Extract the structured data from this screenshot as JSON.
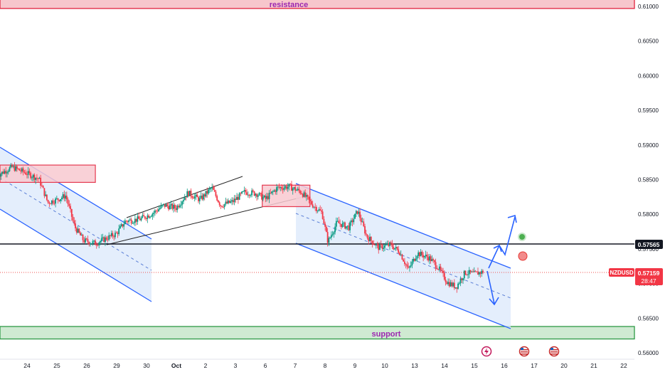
{
  "chart_data": {
    "type": "candlestick",
    "symbol": "NZDUSD",
    "last_price": "0.57159",
    "countdown": "28:47",
    "marked_level": "0.57565",
    "y_ticks": [
      "0.61000",
      "0.60500",
      "0.60000",
      "0.59500",
      "0.59000",
      "0.58500",
      "0.58000",
      "0.57500",
      "0.57000",
      "0.56500",
      "0.56000"
    ],
    "x_ticks": [
      "24",
      "25",
      "26",
      "29",
      "30",
      "Oct",
      "2",
      "3",
      "6",
      "7",
      "8",
      "9",
      "10",
      "13",
      "14",
      "15",
      "16",
      "17",
      "20",
      "21",
      "22"
    ],
    "ylim": [
      0.56,
      0.61
    ],
    "zones": [
      {
        "label": "resistance",
        "from": 0.6097,
        "to": 0.6115,
        "color": "#f7c6cc",
        "border": "#e0233f"
      },
      {
        "label": "support",
        "from": 0.562,
        "to": 0.5638,
        "color": "#cfead2",
        "border": "#2e9a46"
      }
    ],
    "boxes": [
      {
        "name": "supply-box-left",
        "x0": 0.0,
        "x1": 3.2,
        "y0": 0.5846,
        "y1": 0.5871
      },
      {
        "name": "supply-box-mid",
        "x0": 8.8,
        "x1": 10.4,
        "y0": 0.5811,
        "y1": 0.5842
      }
    ],
    "price_path": [
      [
        0.0,
        0.5856
      ],
      [
        0.5,
        0.5868
      ],
      [
        1.0,
        0.5859
      ],
      [
        1.4,
        0.5851
      ],
      [
        1.7,
        0.5817
      ],
      [
        2.0,
        0.5821
      ],
      [
        2.3,
        0.5827
      ],
      [
        2.6,
        0.5782
      ],
      [
        2.9,
        0.5762
      ],
      [
        3.3,
        0.5758
      ],
      [
        3.6,
        0.5764
      ],
      [
        4.0,
        0.5772
      ],
      [
        4.3,
        0.579
      ],
      [
        4.8,
        0.5793
      ],
      [
        5.2,
        0.5801
      ],
      [
        5.6,
        0.5813
      ],
      [
        6.0,
        0.5809
      ],
      [
        6.4,
        0.5831
      ],
      [
        6.8,
        0.5821
      ],
      [
        7.2,
        0.5838
      ],
      [
        7.5,
        0.5813
      ],
      [
        7.9,
        0.5818
      ],
      [
        8.3,
        0.5832
      ],
      [
        8.7,
        0.583
      ],
      [
        9.0,
        0.5822
      ],
      [
        9.4,
        0.5838
      ],
      [
        9.8,
        0.584
      ],
      [
        10.2,
        0.5832
      ],
      [
        10.6,
        0.5813
      ],
      [
        10.9,
        0.5802
      ],
      [
        11.1,
        0.576
      ],
      [
        11.4,
        0.5788
      ],
      [
        11.8,
        0.5781
      ],
      [
        12.1,
        0.5805
      ],
      [
        12.4,
        0.5768
      ],
      [
        12.8,
        0.5752
      ],
      [
        13.2,
        0.5756
      ],
      [
        13.5,
        0.5746
      ],
      [
        13.8,
        0.572
      ],
      [
        14.1,
        0.5744
      ],
      [
        14.5,
        0.5737
      ],
      [
        14.8,
        0.5723
      ],
      [
        15.1,
        0.5702
      ],
      [
        15.4,
        0.5695
      ],
      [
        15.7,
        0.5716
      ],
      [
        16.0,
        0.5714
      ],
      [
        16.3,
        0.5717
      ]
    ]
  }
}
